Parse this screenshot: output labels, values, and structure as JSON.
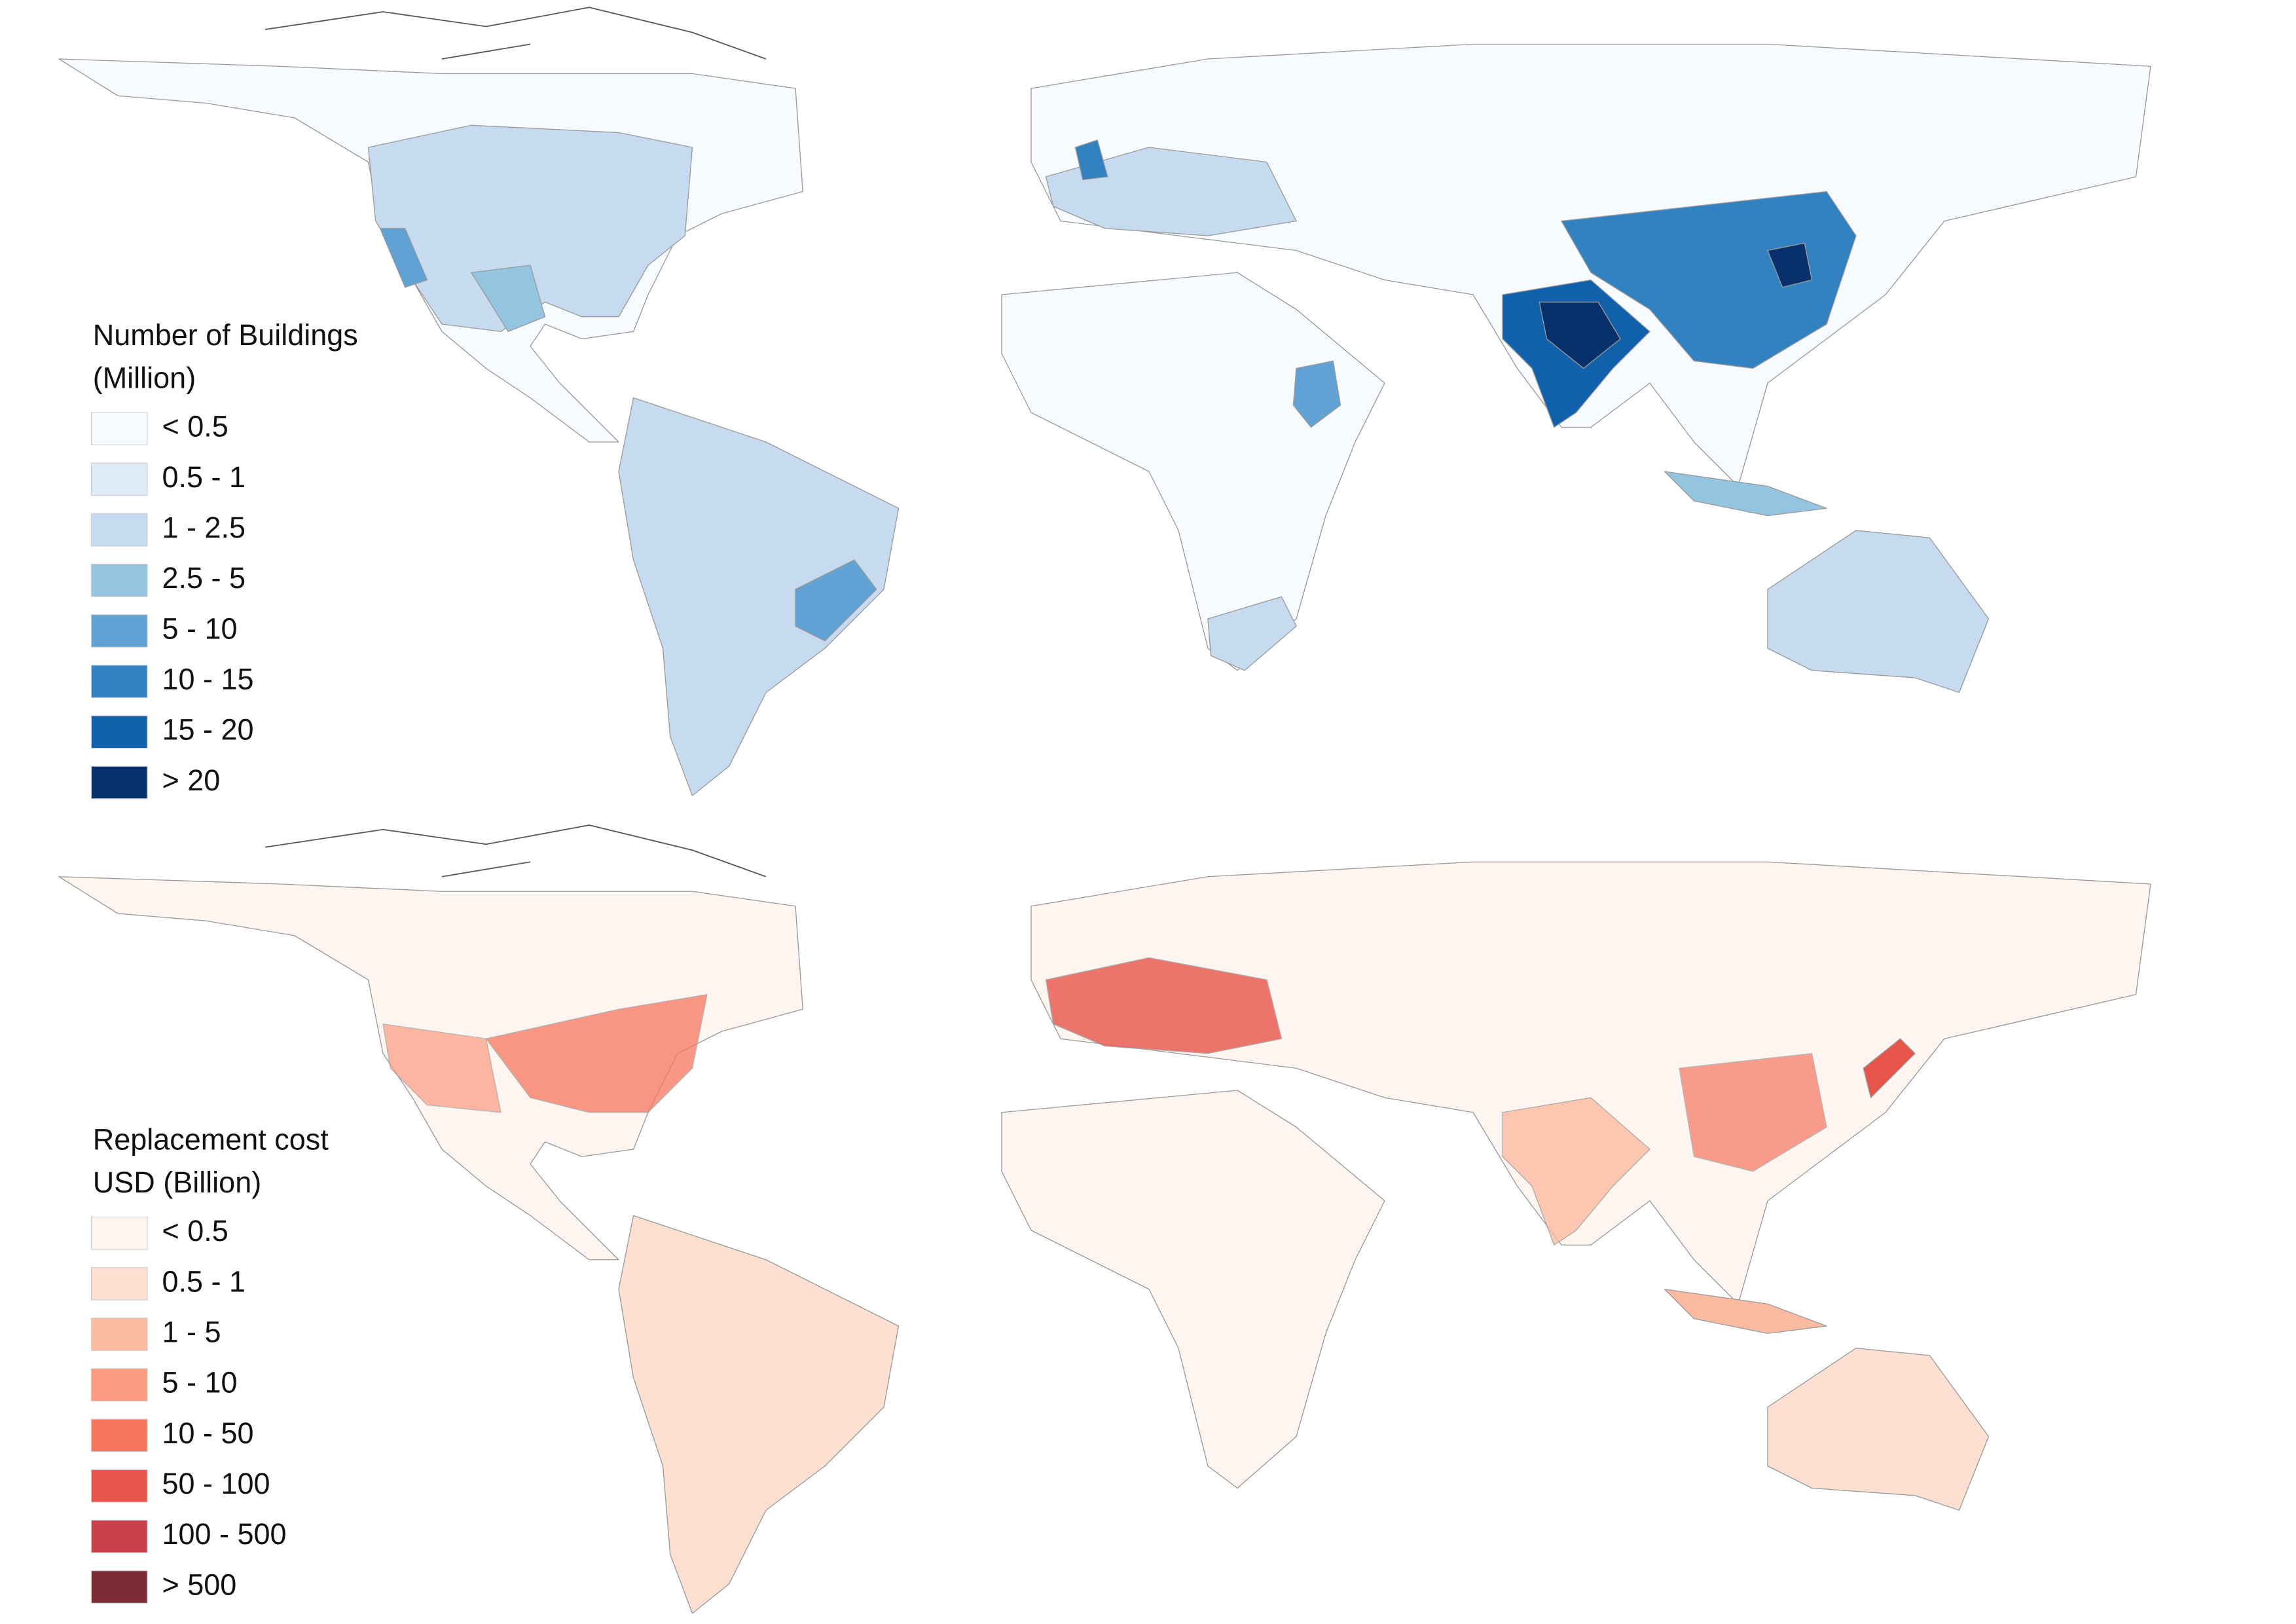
{
  "maps": [
    {
      "legend": {
        "title_lines": [
          "Number of Buildings",
          "(Million)"
        ],
        "items": [
          {
            "label": "< 0.5",
            "color": "#f7fbff"
          },
          {
            "label": "0.5 - 1",
            "color": "#deebf7"
          },
          {
            "label": "1 - 2.5",
            "color": "#c6dbef"
          },
          {
            "label": "2.5 - 5",
            "color": "#93c4e0"
          },
          {
            "label": "5 - 10",
            "color": "#5fa2d3"
          },
          {
            "label": "10 - 15",
            "color": "#3282c2"
          },
          {
            "label": "15 - 20",
            "color": "#1160ab"
          },
          {
            "label": "> 20",
            "color": "#08306b"
          }
        ]
      }
    },
    {
      "legend": {
        "title_lines": [
          "Replacement cost",
          "USD (Billion)"
        ],
        "items": [
          {
            "label": "< 0.5",
            "color": "#fff5f0"
          },
          {
            "label": "0.5 - 1",
            "color": "#fee0d2"
          },
          {
            "label": "1 - 5",
            "color": "#fcbba1"
          },
          {
            "label": "5 - 10",
            "color": "#fc9a80"
          },
          {
            "label": "10 - 50",
            "color": "#f7765f"
          },
          {
            "label": "50 - 100",
            "color": "#e8554b"
          },
          {
            "label": "100 - 500",
            "color": "#c7404a"
          },
          {
            "label": "> 500",
            "color": "#7d2b35"
          }
        ]
      }
    }
  ]
}
